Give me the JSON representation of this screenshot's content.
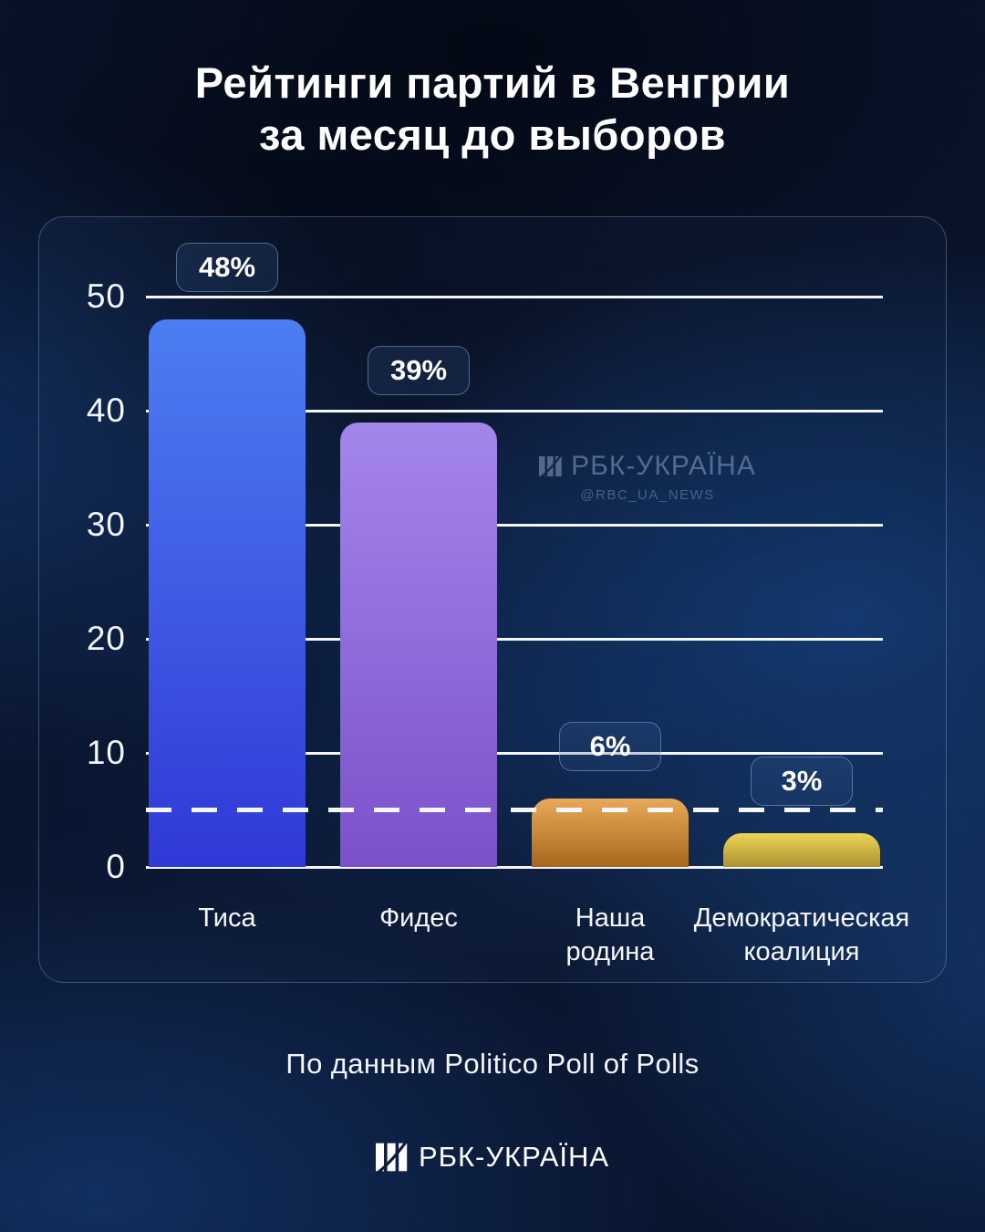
{
  "title": {
    "line1": "Рейтинги партий в Венгрии",
    "line2": "за месяц до выборов"
  },
  "chart_data": {
    "type": "bar",
    "categories": [
      "Тиса",
      "Фидес",
      "Наша\nродина",
      "Демократическая\nкоалиция"
    ],
    "values": [
      48,
      39,
      6,
      3
    ],
    "value_labels": [
      "48%",
      "39%",
      "6%",
      "3%"
    ],
    "yticks": [
      0,
      10,
      20,
      30,
      40,
      50
    ],
    "ylim": [
      0,
      50
    ],
    "threshold_line": 5,
    "grid": true,
    "legend": "none",
    "bar_gradients": [
      [
        "#4d7df2",
        "#3039d6"
      ],
      [
        "#a486ea",
        "#7b51cb"
      ],
      [
        "#eaa957",
        "#a8661e"
      ],
      [
        "#eed356",
        "#ac932f"
      ]
    ]
  },
  "colors": {
    "background": "#0a1630",
    "grid": "#ffffff",
    "threshold": "#f4f7fb",
    "panel_border": "rgba(160,190,230,0.32)"
  },
  "watermark": {
    "brand": "РБК-УКРАЇНА",
    "handle": "@RBC_UA_NEWS"
  },
  "source": "По данным Politico Poll of Polls",
  "footer": {
    "brand": "РБК-УКРАЇНА"
  }
}
